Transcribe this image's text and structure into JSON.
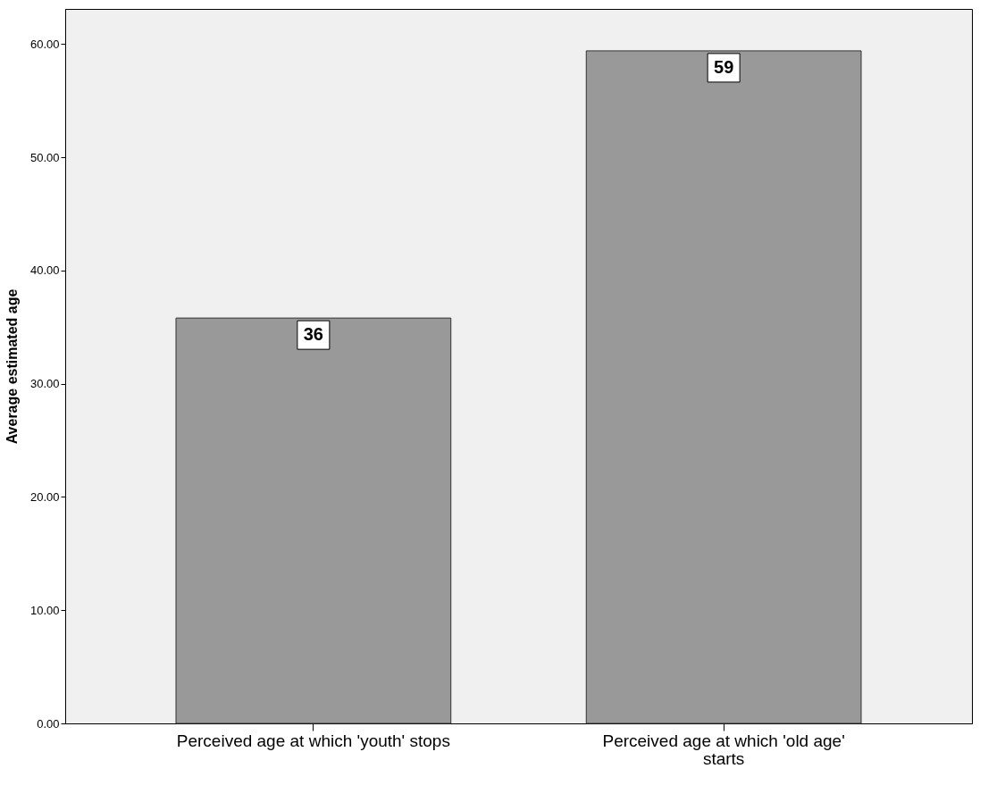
{
  "chart_data": {
    "type": "bar",
    "ylabel": "Average estimated age",
    "categories": [
      "Perceived age at which 'youth' stops",
      "Perceived age at which 'old age' starts"
    ],
    "values": [
      35.8,
      59.4
    ],
    "value_labels": [
      "36",
      "59"
    ],
    "color": "#999999",
    "ylim": [
      0,
      63.1
    ],
    "yticks": [
      {
        "value": 0,
        "label": "0.00"
      },
      {
        "value": 10,
        "label": "10.00"
      },
      {
        "value": 20,
        "label": "20.00"
      },
      {
        "value": 30,
        "label": "30.00"
      },
      {
        "value": 40,
        "label": "40.00"
      },
      {
        "value": 50,
        "label": "50.00"
      },
      {
        "value": 60,
        "label": "60.00"
      }
    ],
    "grid": false
  }
}
